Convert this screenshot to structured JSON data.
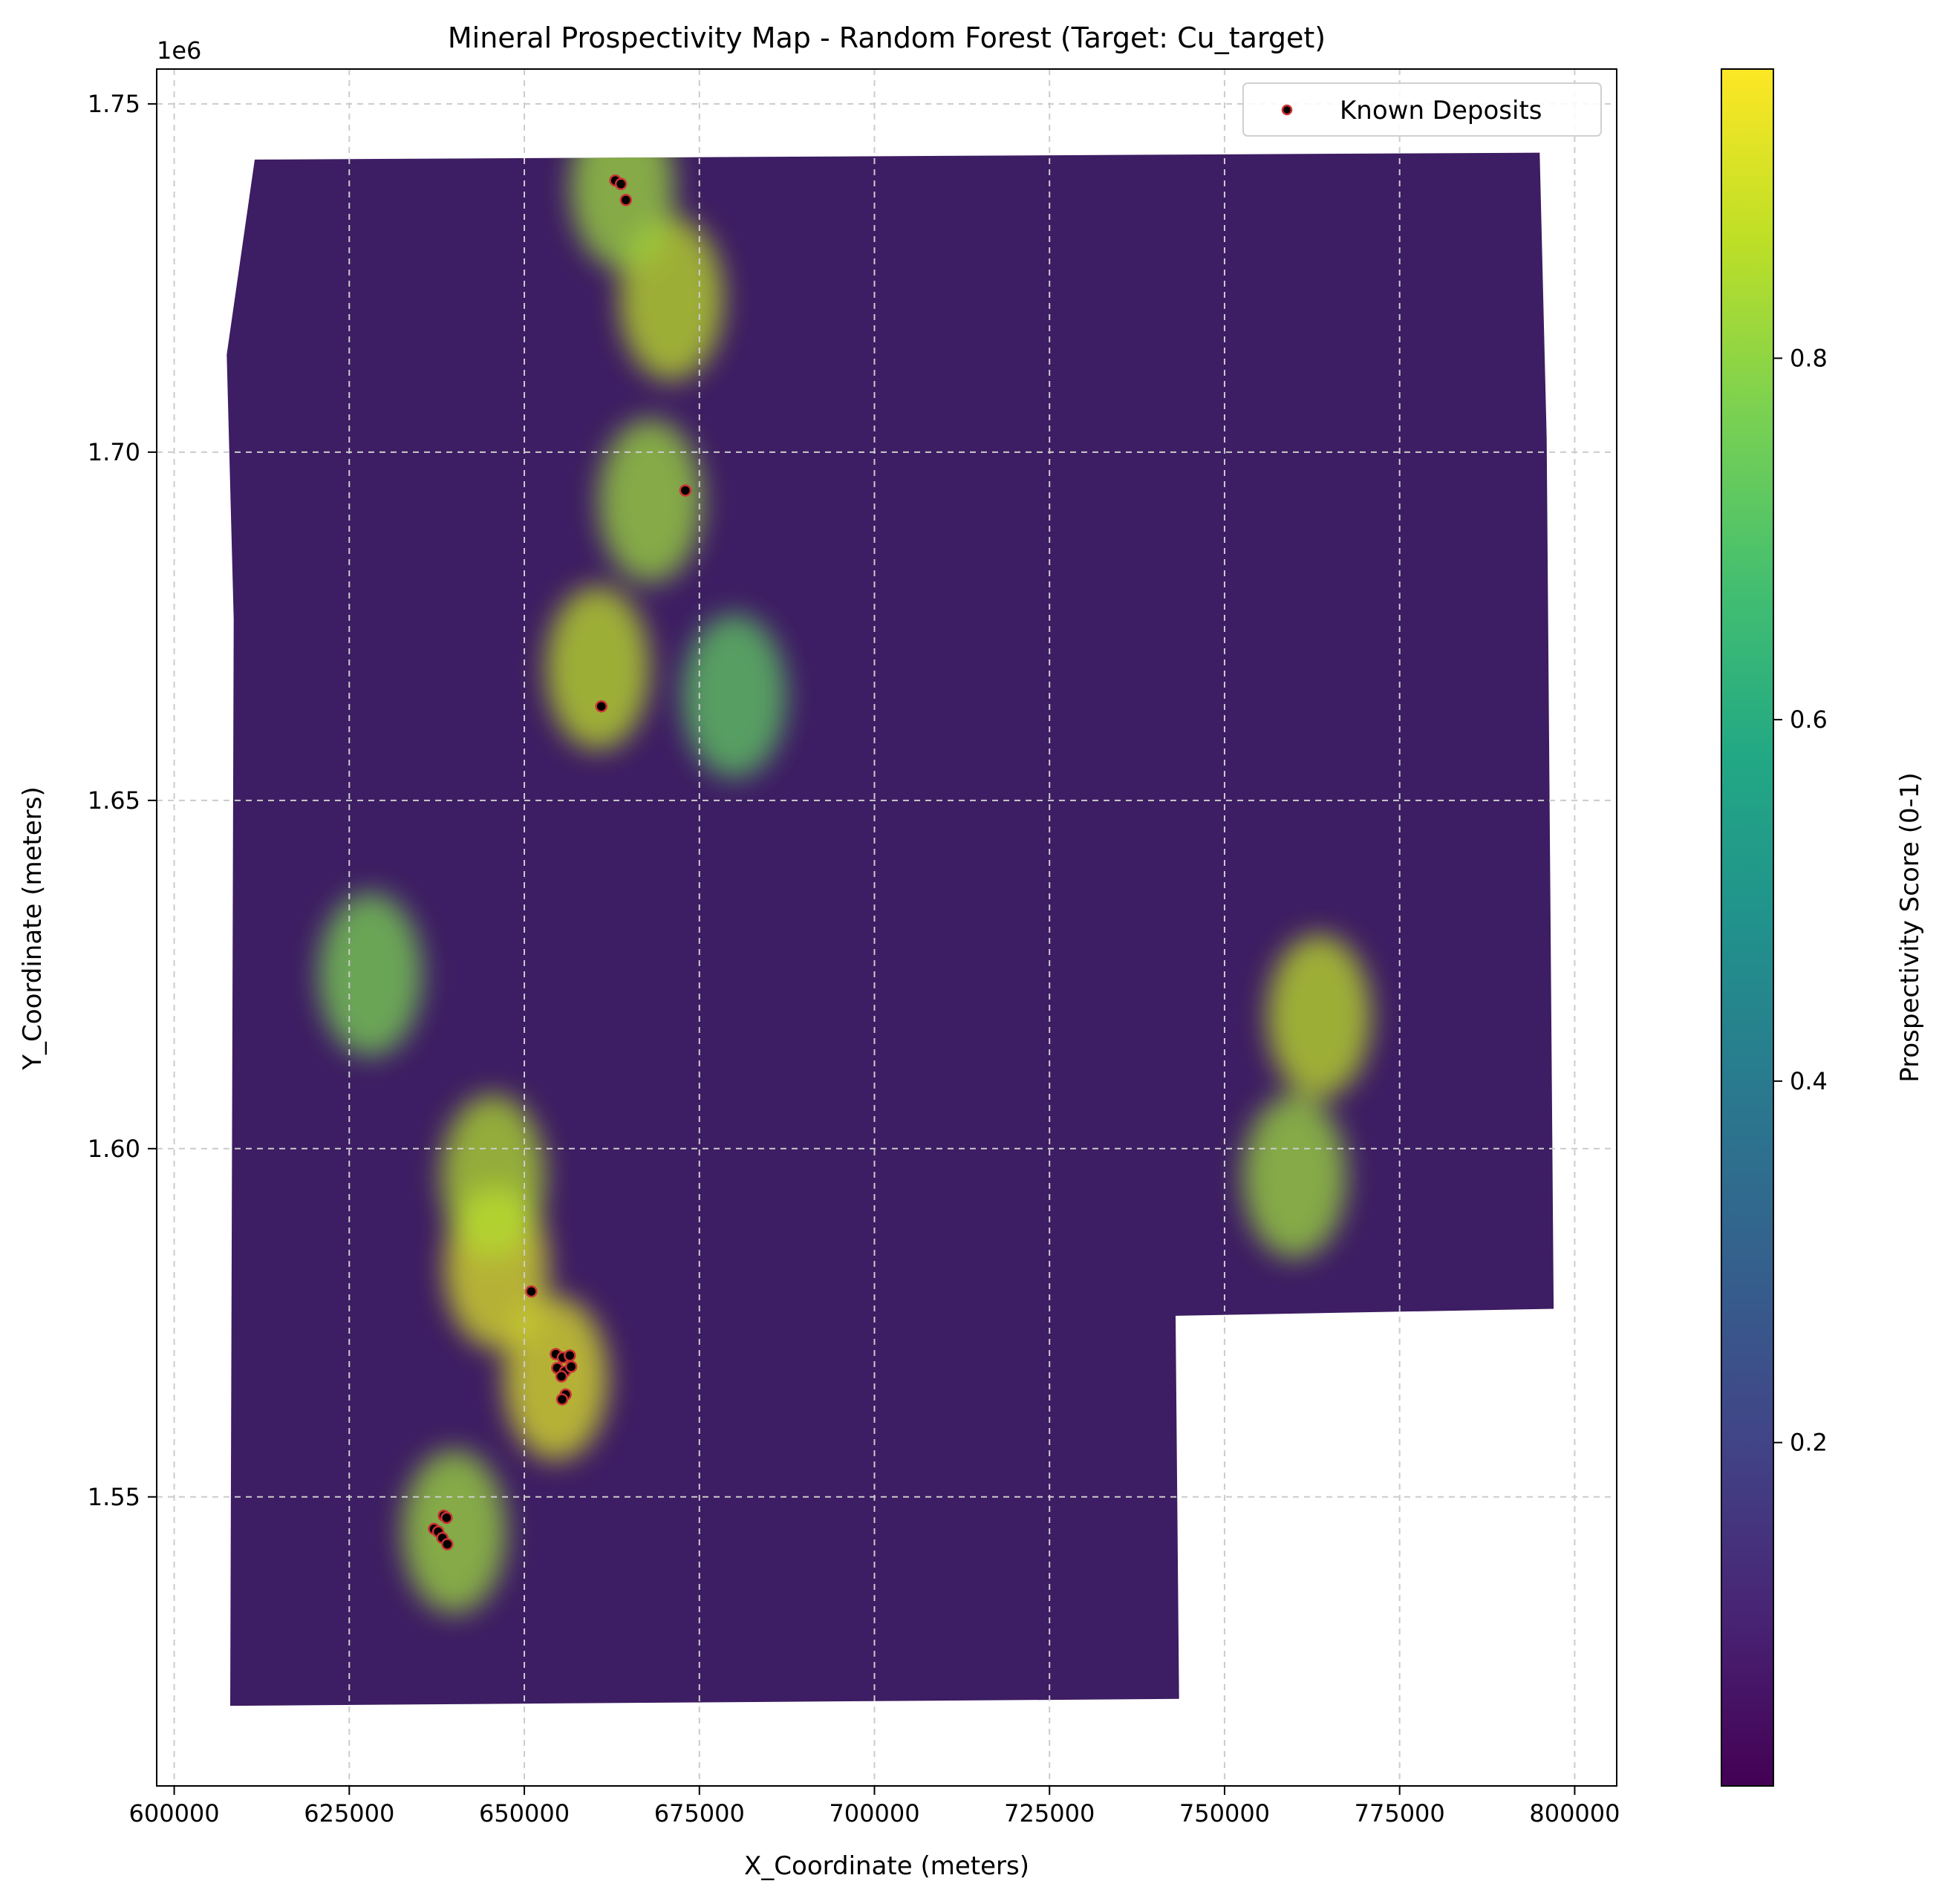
{
  "chart_data": {
    "type": "heatmap",
    "title": "Mineral Prospectivity Map - Random Forest (Target: Cu_target)",
    "xlabel": "X_Coordinate (meters)",
    "ylabel": "Y_Coordinate (meters)",
    "y_offset_label": "1e6",
    "xlim": [
      597500,
      806000
    ],
    "ylim": [
      1508500,
      1755000
    ],
    "x_ticks": [
      600000,
      625000,
      650000,
      675000,
      700000,
      725000,
      750000,
      775000,
      800000
    ],
    "x_tick_labels": [
      "600000",
      "625000",
      "650000",
      "675000",
      "700000",
      "725000",
      "750000",
      "775000",
      "800000"
    ],
    "y_ticks": [
      1550000,
      1600000,
      1650000,
      1700000,
      1750000
    ],
    "y_tick_labels": [
      "1.55",
      "1.60",
      "1.65",
      "1.70",
      "1.75"
    ],
    "grid": true,
    "legend": {
      "position": "top-right",
      "entries": [
        "Known Deposits"
      ]
    },
    "colorbar": {
      "label": "Prospectivity Score (0-1)",
      "colormap": "viridis",
      "range": [
        0.01,
        0.96
      ],
      "ticks": [
        0.2,
        0.4,
        0.6,
        0.8
      ],
      "tick_labels": [
        "0.2",
        "0.4",
        "0.6",
        "0.8"
      ]
    },
    "study_area_outline": [
      [
        611500,
        1742000
      ],
      [
        795000,
        1743000
      ],
      [
        796000,
        1702000
      ],
      [
        797000,
        1577000
      ],
      [
        743000,
        1576000
      ],
      [
        743500,
        1521000
      ],
      [
        608000,
        1520000
      ],
      [
        608500,
        1676000
      ],
      [
        607500,
        1714000
      ]
    ],
    "high_prospectivity_zones": [
      {
        "x": 660500,
        "y": 1669000,
        "value": 0.9
      },
      {
        "x": 668000,
        "y": 1693000,
        "value": 0.85
      },
      {
        "x": 671000,
        "y": 1722000,
        "value": 0.9
      },
      {
        "x": 664000,
        "y": 1738000,
        "value": 0.85
      },
      {
        "x": 646000,
        "y": 1583000,
        "value": 0.95
      },
      {
        "x": 654500,
        "y": 1567000,
        "value": 0.95
      },
      {
        "x": 645500,
        "y": 1596000,
        "value": 0.88
      },
      {
        "x": 640000,
        "y": 1545000,
        "value": 0.85
      },
      {
        "x": 628000,
        "y": 1625000,
        "value": 0.8
      },
      {
        "x": 763500,
        "y": 1619000,
        "value": 0.9
      },
      {
        "x": 760000,
        "y": 1596000,
        "value": 0.85
      },
      {
        "x": 680000,
        "y": 1665000,
        "value": 0.75
      }
    ],
    "series": [
      {
        "name": "Known Deposits",
        "type": "scatter",
        "color": "#000000",
        "edge_color": "#cc3333",
        "points": [
          [
            663000,
            1739000
          ],
          [
            663800,
            1738500
          ],
          [
            664500,
            1736200
          ],
          [
            673000,
            1694500
          ],
          [
            661000,
            1663500
          ],
          [
            651000,
            1579500
          ],
          [
            654500,
            1570500
          ],
          [
            655500,
            1570000
          ],
          [
            656500,
            1570300
          ],
          [
            654700,
            1568500
          ],
          [
            655800,
            1568000
          ],
          [
            656700,
            1568700
          ],
          [
            655300,
            1567300
          ],
          [
            655900,
            1564700
          ],
          [
            655400,
            1564000
          ],
          [
            638500,
            1547300
          ],
          [
            638900,
            1547000
          ],
          [
            637100,
            1545400
          ],
          [
            637700,
            1545000
          ],
          [
            638300,
            1544100
          ],
          [
            639000,
            1543200
          ]
        ]
      }
    ]
  }
}
